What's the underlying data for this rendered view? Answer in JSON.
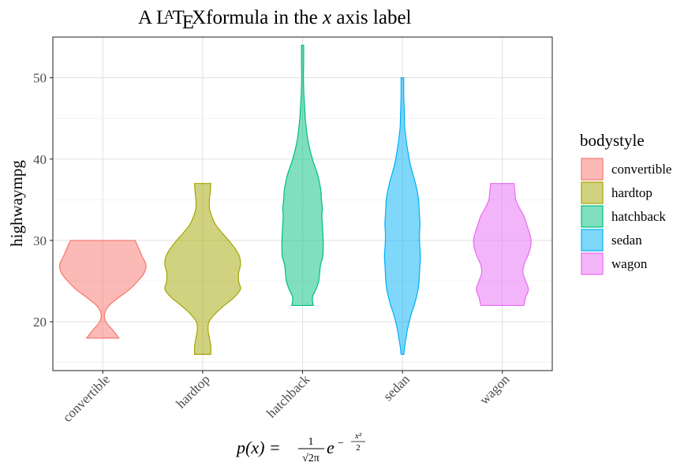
{
  "chart_data": {
    "type": "violin",
    "title": {
      "prefix": "A ",
      "latex_L": "L",
      "latex_A": "A",
      "latex_T": "T",
      "latex_E": "E",
      "latex_X": "X",
      "suffix_before_var": "formula in the ",
      "var": "x",
      "suffix": " axis label"
    },
    "ylabel": "highwaympg",
    "xlabel_formula": {
      "lhs": "p(x) = ",
      "numerator": "1",
      "denominator": "√2π",
      "base": "e",
      "exp_sign": "−",
      "exp_num": "x²",
      "exp_den": "2"
    },
    "ylim": [
      14,
      55
    ],
    "yticks": [
      20,
      30,
      40,
      50
    ],
    "categories": [
      "convertible",
      "hardtop",
      "hatchback",
      "sedan",
      "wagon"
    ],
    "legend": {
      "title": "bodystyle",
      "placement": "right",
      "items": [
        "convertible",
        "hardtop",
        "hatchback",
        "sedan",
        "wagon"
      ]
    },
    "colors": {
      "convertible": "#F8766D",
      "hardtop": "#A3A500",
      "hatchback": "#00BF7D",
      "sedan": "#00B0F6",
      "wagon": "#E76BF3"
    },
    "grid": true,
    "violins": [
      {
        "category": "convertible",
        "min": 18,
        "max": 30,
        "profile": [
          [
            18,
            0.36
          ],
          [
            19,
            0.22
          ],
          [
            20,
            0.07
          ],
          [
            21,
            0.04
          ],
          [
            22,
            0.14
          ],
          [
            23,
            0.36
          ],
          [
            24,
            0.6
          ],
          [
            25,
            0.78
          ],
          [
            26,
            0.92
          ],
          [
            27,
            0.96
          ],
          [
            28,
            0.88
          ],
          [
            29,
            0.8
          ],
          [
            30,
            0.72
          ]
        ]
      },
      {
        "category": "hardtop",
        "min": 16,
        "max": 37,
        "profile": [
          [
            16,
            0.18
          ],
          [
            17,
            0.18
          ],
          [
            18,
            0.15
          ],
          [
            19,
            0.12
          ],
          [
            20,
            0.14
          ],
          [
            21,
            0.28
          ],
          [
            22,
            0.48
          ],
          [
            23,
            0.7
          ],
          [
            24,
            0.84
          ],
          [
            25,
            0.8
          ],
          [
            26,
            0.8
          ],
          [
            27,
            0.84
          ],
          [
            28,
            0.82
          ],
          [
            29,
            0.72
          ],
          [
            30,
            0.58
          ],
          [
            31,
            0.42
          ],
          [
            32,
            0.28
          ],
          [
            33,
            0.2
          ],
          [
            34,
            0.15
          ],
          [
            35,
            0.15
          ],
          [
            36,
            0.17
          ],
          [
            37,
            0.18
          ]
        ]
      },
      {
        "category": "hatchback",
        "min": 22,
        "max": 54,
        "profile": [
          [
            22,
            0.24
          ],
          [
            23,
            0.22
          ],
          [
            24,
            0.3
          ],
          [
            25,
            0.36
          ],
          [
            26,
            0.38
          ],
          [
            27,
            0.4
          ],
          [
            28,
            0.45
          ],
          [
            29,
            0.46
          ],
          [
            30,
            0.46
          ],
          [
            31,
            0.45
          ],
          [
            32,
            0.44
          ],
          [
            33,
            0.43
          ],
          [
            34,
            0.44
          ],
          [
            35,
            0.42
          ],
          [
            36,
            0.41
          ],
          [
            37,
            0.38
          ],
          [
            38,
            0.34
          ],
          [
            39,
            0.28
          ],
          [
            40,
            0.22
          ],
          [
            41,
            0.17
          ],
          [
            42,
            0.13
          ],
          [
            43,
            0.1
          ],
          [
            44,
            0.08
          ],
          [
            45,
            0.06
          ],
          [
            46,
            0.05
          ],
          [
            48,
            0.03
          ],
          [
            50,
            0.02
          ],
          [
            52,
            0.025
          ],
          [
            54,
            0.025
          ]
        ]
      },
      {
        "category": "sedan",
        "min": 16,
        "max": 50,
        "profile": [
          [
            16,
            0.03
          ],
          [
            17,
            0.05
          ],
          [
            18,
            0.08
          ],
          [
            19,
            0.11
          ],
          [
            20,
            0.15
          ],
          [
            21,
            0.2
          ],
          [
            22,
            0.26
          ],
          [
            23,
            0.31
          ],
          [
            24,
            0.35
          ],
          [
            25,
            0.37
          ],
          [
            26,
            0.38
          ],
          [
            27,
            0.39
          ],
          [
            28,
            0.4
          ],
          [
            29,
            0.39
          ],
          [
            30,
            0.38
          ],
          [
            31,
            0.38
          ],
          [
            32,
            0.39
          ],
          [
            33,
            0.38
          ],
          [
            34,
            0.37
          ],
          [
            35,
            0.36
          ],
          [
            36,
            0.33
          ],
          [
            37,
            0.29
          ],
          [
            38,
            0.24
          ],
          [
            39,
            0.19
          ],
          [
            40,
            0.15
          ],
          [
            41,
            0.12
          ],
          [
            42,
            0.09
          ],
          [
            43,
            0.07
          ],
          [
            44,
            0.05
          ],
          [
            46,
            0.04
          ],
          [
            48,
            0.03
          ],
          [
            50,
            0.03
          ]
        ]
      },
      {
        "category": "wagon",
        "min": 22,
        "max": 37,
        "profile": [
          [
            22,
            0.48
          ],
          [
            23,
            0.52
          ],
          [
            24,
            0.58
          ],
          [
            25,
            0.52
          ],
          [
            26,
            0.46
          ],
          [
            27,
            0.48
          ],
          [
            28,
            0.56
          ],
          [
            29,
            0.62
          ],
          [
            30,
            0.64
          ],
          [
            31,
            0.6
          ],
          [
            32,
            0.54
          ],
          [
            33,
            0.48
          ],
          [
            34,
            0.38
          ],
          [
            35,
            0.3
          ],
          [
            36,
            0.28
          ],
          [
            37,
            0.26
          ]
        ]
      }
    ]
  }
}
